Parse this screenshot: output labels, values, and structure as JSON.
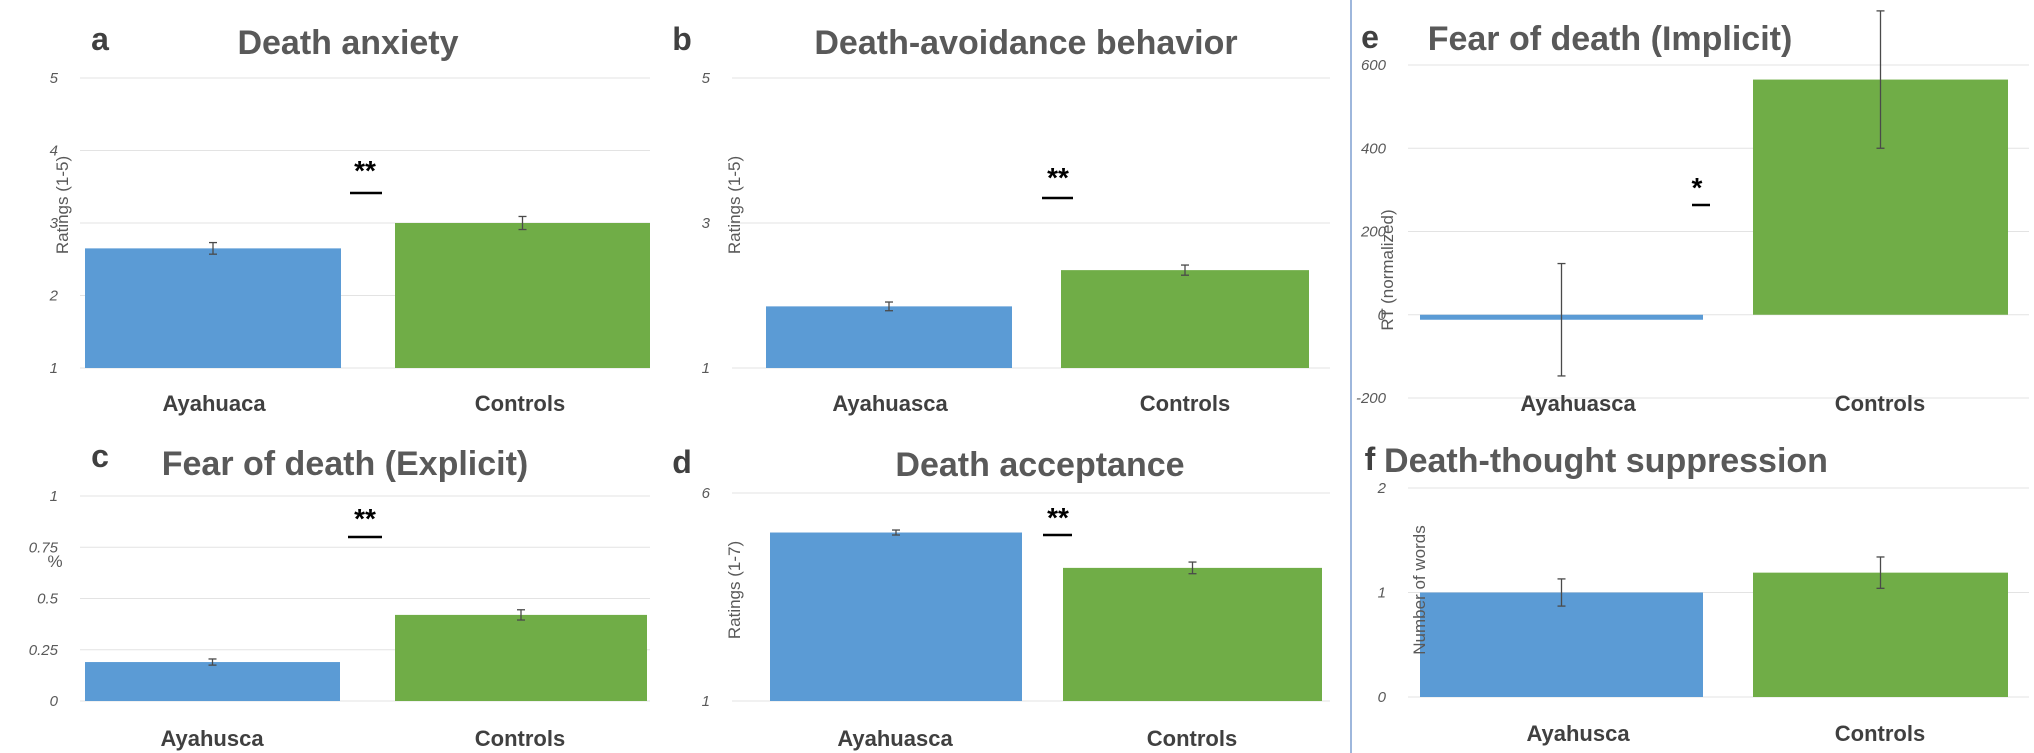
{
  "colors": {
    "blue": "#5b9bd5",
    "green": "#70ad47",
    "divider": "#7f9fd0"
  },
  "chart_data": [
    {
      "id": "a",
      "type": "bar",
      "letter": "a",
      "title": "Death anxiety",
      "ylabel": "Ratings (1-5)",
      "ylim": [
        1,
        5
      ],
      "yticks": [
        1,
        2,
        3,
        4,
        5
      ],
      "categories": [
        "Ayahuaca",
        "Controls"
      ],
      "values": [
        2.65,
        3.0
      ],
      "errors": [
        0.08,
        0.09
      ],
      "significance": "**"
    },
    {
      "id": "b",
      "type": "bar",
      "letter": "b",
      "title": "Death-avoidance behavior",
      "ylabel": "Ratings (1-5)",
      "ylim": [
        1,
        5
      ],
      "yticks": [
        1,
        3,
        5
      ],
      "categories": [
        "Ayahuasca",
        "Controls"
      ],
      "values": [
        1.85,
        2.35
      ],
      "errors": [
        0.06,
        0.07
      ],
      "significance": "**"
    },
    {
      "id": "c",
      "type": "bar",
      "letter": "c",
      "title": "Fear of death (Explicit)",
      "ylabel": "%",
      "ylim": [
        0,
        1
      ],
      "yticks": [
        0,
        0.25,
        0.5,
        0.75,
        1
      ],
      "categories": [
        "Ayahusca",
        "Controls"
      ],
      "values": [
        0.19,
        0.42
      ],
      "errors": [
        0.015,
        0.025
      ],
      "significance": "**"
    },
    {
      "id": "d",
      "type": "bar",
      "letter": "d",
      "title": "Death acceptance",
      "ylabel": "Ratings (1-7)",
      "ylim": [
        1,
        6
      ],
      "yticks": [
        1,
        6
      ],
      "categories": [
        "Ayahuasca",
        "Controls"
      ],
      "values": [
        5.05,
        4.2
      ],
      "errors": [
        0.06,
        0.14
      ],
      "significance": "**"
    },
    {
      "id": "e",
      "type": "bar",
      "letter": "e",
      "title": "Fear of death (Implicit)",
      "ylabel": "RT (normalized)",
      "ylim": [
        -200,
        600
      ],
      "yticks": [
        -200,
        0,
        200,
        400,
        600
      ],
      "categories": [
        "Ayahuasca",
        "Controls"
      ],
      "values": [
        -12,
        565
      ],
      "errors": [
        135,
        165
      ],
      "significance": "*"
    },
    {
      "id": "f",
      "type": "bar",
      "letter": "f",
      "title": "Death-thought suppression",
      "ylabel": "Number of words",
      "ylim": [
        0,
        2
      ],
      "yticks": [
        0,
        1,
        2
      ],
      "categories": [
        "Ayahusca",
        "Controls"
      ],
      "values": [
        1.0,
        1.19
      ],
      "errors": [
        0.13,
        0.15
      ],
      "significance": ""
    }
  ]
}
